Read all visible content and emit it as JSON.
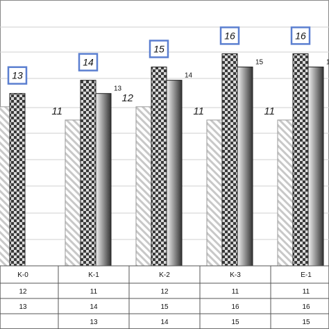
{
  "chart_data": {
    "type": "bar",
    "categories": [
      "K-0",
      "K-1",
      "K-2",
      "K-3",
      "E-1"
    ],
    "series": [
      {
        "values": [
          12,
          11,
          12,
          11,
          11
        ]
      },
      {
        "values": [
          13,
          14,
          15,
          16,
          16
        ]
      },
      {
        "values": [
          null,
          13,
          14,
          15,
          15
        ]
      }
    ],
    "table_rows": [
      [
        "12",
        "11",
        "12",
        "11",
        "11"
      ],
      [
        "13",
        "14",
        "15",
        "16",
        "16"
      ],
      [
        "",
        "13",
        "14",
        "15",
        "15"
      ]
    ],
    "grid": true,
    "colors": {
      "frame": "#888888",
      "label_box": "#5b7fd0",
      "hatch": "#c8c8c8",
      "checker_dark": "#3a3a3a",
      "checker_light": "#d9d9d9",
      "gradient_dark": "#333333",
      "gradient_light": "#f2f2f2"
    }
  }
}
